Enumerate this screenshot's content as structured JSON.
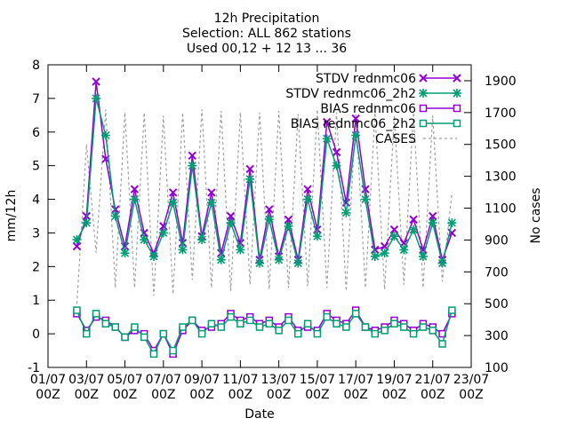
{
  "chart_data": {
    "type": "line",
    "title_lines": [
      "12h Precipitation",
      "Selection: ALL    862 stations",
      "Used 00,12 + 12 13 ... 36"
    ],
    "xlabel": "Date",
    "ylabel": "mm/12h",
    "y2label": "No cases",
    "ylim": [
      -1,
      8
    ],
    "y2lim": [
      100,
      2000
    ],
    "xlim_days": [
      0,
      22
    ],
    "yticks": [
      "-1",
      "0",
      "1",
      "2",
      "3",
      "4",
      "5",
      "6",
      "7",
      "8"
    ],
    "y2ticks": [
      "100",
      "300",
      "500",
      "700",
      "900",
      "1100",
      "1300",
      "1500",
      "1700",
      "1900"
    ],
    "xticks": [
      {
        "day": 0,
        "line1": "01/07",
        "line2": "00Z"
      },
      {
        "day": 2,
        "line1": "03/07",
        "line2": "00Z"
      },
      {
        "day": 4,
        "line1": "05/07",
        "line2": "00Z"
      },
      {
        "day": 6,
        "line1": "07/07",
        "line2": "00Z"
      },
      {
        "day": 8,
        "line1": "09/07",
        "line2": "00Z"
      },
      {
        "day": 10,
        "line1": "11/07",
        "line2": "00Z"
      },
      {
        "day": 12,
        "line1": "13/07",
        "line2": "00Z"
      },
      {
        "day": 14,
        "line1": "15/07",
        "line2": "00Z"
      },
      {
        "day": 16,
        "line1": "17/07",
        "line2": "00Z"
      },
      {
        "day": 18,
        "line1": "19/07",
        "line2": "00Z"
      },
      {
        "day": 20,
        "line1": "21/07",
        "line2": "00Z"
      },
      {
        "day": 22,
        "line1": "23/07",
        "line2": "00Z"
      }
    ],
    "grid": false,
    "legend_placement": "top-right",
    "series": [
      {
        "name": "STDV rednmc06",
        "color": "#9400d3",
        "marker": "x",
        "axis": "y1",
        "x": [
          1.5,
          2.0,
          2.5,
          3.0,
          3.5,
          4.0,
          4.5,
          5.0,
          5.5,
          6.0,
          6.5,
          7.0,
          7.5,
          8.0,
          8.5,
          9.0,
          9.5,
          10.0,
          10.5,
          11.0,
          11.5,
          12.0,
          12.5,
          13.0,
          13.5,
          14.0,
          14.5,
          15.0,
          15.5,
          16.0,
          16.5,
          17.0,
          17.5,
          18.0,
          18.5,
          19.0,
          19.5,
          20.0,
          20.5,
          21.0
        ],
        "values": [
          2.6,
          3.5,
          7.5,
          5.2,
          3.7,
          2.6,
          4.3,
          3.0,
          2.4,
          3.2,
          4.2,
          2.7,
          5.3,
          2.9,
          4.2,
          2.4,
          3.5,
          2.7,
          4.9,
          2.2,
          3.7,
          2.3,
          3.4,
          2.2,
          4.3,
          3.1,
          6.3,
          5.4,
          3.9,
          6.4,
          4.3,
          2.5,
          2.6,
          3.1,
          2.7,
          3.4,
          2.5,
          3.5,
          2.2,
          3.0
        ]
      },
      {
        "name": "STDV rednmc06_2h2",
        "color": "#009e73",
        "marker": "*",
        "axis": "y1",
        "x": [
          1.5,
          2.0,
          2.5,
          3.0,
          3.5,
          4.0,
          4.5,
          5.0,
          5.5,
          6.0,
          6.5,
          7.0,
          7.5,
          8.0,
          8.5,
          9.0,
          9.5,
          10.0,
          10.5,
          11.0,
          11.5,
          12.0,
          12.5,
          13.0,
          13.5,
          14.0,
          14.5,
          15.0,
          15.5,
          16.0,
          16.5,
          17.0,
          17.5,
          18.0,
          18.5,
          19.0,
          19.5,
          20.0,
          20.5,
          21.0
        ],
        "values": [
          2.8,
          3.3,
          7.0,
          5.9,
          3.5,
          2.4,
          4.0,
          2.8,
          2.3,
          3.0,
          3.9,
          2.5,
          5.0,
          2.8,
          3.9,
          2.2,
          3.3,
          2.5,
          4.6,
          2.1,
          3.4,
          2.2,
          3.2,
          2.1,
          4.0,
          2.9,
          5.8,
          5.0,
          3.6,
          5.9,
          4.0,
          2.3,
          2.4,
          2.9,
          2.5,
          3.1,
          2.3,
          3.3,
          2.1,
          3.3
        ]
      },
      {
        "name": "BIAS rednmc06",
        "color": "#9400d3",
        "marker": "square",
        "axis": "y1",
        "x": [
          1.5,
          2.0,
          2.5,
          3.0,
          3.5,
          4.0,
          4.5,
          5.0,
          5.5,
          6.0,
          6.5,
          7.0,
          7.5,
          8.0,
          8.5,
          9.0,
          9.5,
          10.0,
          10.5,
          11.0,
          11.5,
          12.0,
          12.5,
          13.0,
          13.5,
          14.0,
          14.5,
          15.0,
          15.5,
          16.0,
          16.5,
          17.0,
          17.5,
          18.0,
          18.5,
          19.0,
          19.5,
          20.0,
          20.5,
          21.0
        ],
        "values": [
          0.6,
          0.1,
          0.5,
          0.4,
          0.2,
          -0.1,
          0.1,
          0.0,
          -0.5,
          0.0,
          -0.6,
          0.1,
          0.4,
          0.1,
          0.2,
          0.3,
          0.6,
          0.4,
          0.5,
          0.3,
          0.4,
          0.2,
          0.5,
          0.1,
          0.2,
          0.1,
          0.6,
          0.4,
          0.3,
          0.7,
          0.2,
          0.1,
          0.2,
          0.4,
          0.3,
          0.1,
          0.3,
          0.2,
          0.0,
          0.6
        ]
      },
      {
        "name": "BIAS rednmc06_2h2",
        "color": "#009e73",
        "marker": "square",
        "axis": "y1",
        "x": [
          1.5,
          2.0,
          2.5,
          3.0,
          3.5,
          4.0,
          4.5,
          5.0,
          5.5,
          6.0,
          6.5,
          7.0,
          7.5,
          8.0,
          8.5,
          9.0,
          9.5,
          10.0,
          10.5,
          11.0,
          11.5,
          12.0,
          12.5,
          13.0,
          13.5,
          14.0,
          14.5,
          15.0,
          15.5,
          16.0,
          16.5,
          17.0,
          17.5,
          18.0,
          18.5,
          19.0,
          19.5,
          20.0,
          20.5,
          21.0
        ],
        "values": [
          0.7,
          0.0,
          0.6,
          0.3,
          0.2,
          -0.1,
          0.2,
          -0.1,
          -0.6,
          0.0,
          -0.5,
          0.2,
          0.4,
          0.0,
          0.3,
          0.2,
          0.5,
          0.3,
          0.4,
          0.2,
          0.3,
          0.1,
          0.4,
          0.0,
          0.3,
          0.0,
          0.5,
          0.3,
          0.2,
          0.6,
          0.2,
          0.0,
          0.1,
          0.3,
          0.2,
          0.0,
          0.2,
          0.1,
          -0.3,
          0.7
        ]
      },
      {
        "name": "CASES",
        "color": "#a0a0a0",
        "marker": "none",
        "dashed": true,
        "axis": "y2",
        "x": [
          1.5,
          2.0,
          2.5,
          3.0,
          3.5,
          4.0,
          4.5,
          5.0,
          5.5,
          6.0,
          6.5,
          7.0,
          7.5,
          8.0,
          8.5,
          9.0,
          9.5,
          10.0,
          10.5,
          11.0,
          11.5,
          12.0,
          12.5,
          13.0,
          13.5,
          14.0,
          14.5,
          15.0,
          15.5,
          16.0,
          16.5,
          17.0,
          17.5,
          18.0,
          18.5,
          19.0,
          19.5,
          20.0,
          20.5,
          21.0
        ],
        "values": [
          500,
          1500,
          820,
          1720,
          600,
          1700,
          600,
          1700,
          550,
          1680,
          560,
          1700,
          650,
          1720,
          600,
          1710,
          580,
          1700,
          620,
          1700,
          590,
          1710,
          600,
          1690,
          610,
          1720,
          600,
          1700,
          580,
          1690,
          600,
          1700,
          590,
          1680,
          620,
          1700,
          600,
          1680,
          640,
          1200
        ]
      }
    ]
  }
}
